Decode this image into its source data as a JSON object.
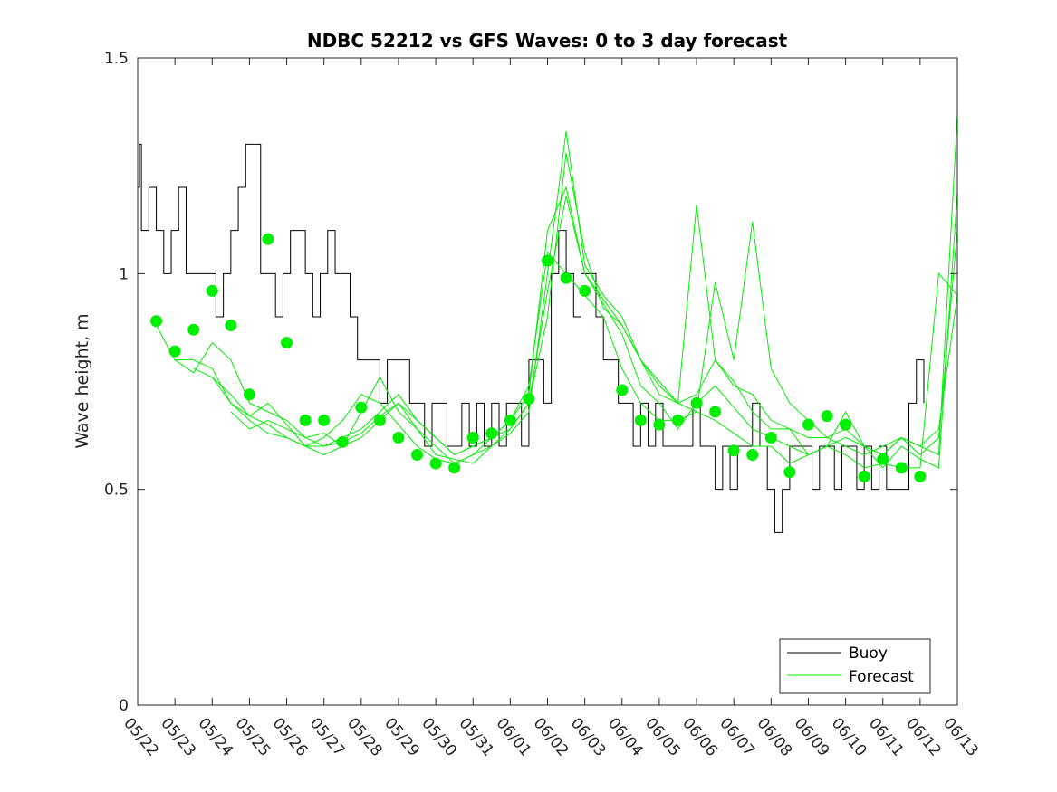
{
  "chart_data": {
    "type": "line",
    "title": "NDBC 52212 vs GFS Waves: 0 to 3 day forecast",
    "xlabel": "",
    "ylabel": "Wave height, m",
    "x_unit": "date (month/day)",
    "xlim": [
      "05/22",
      "06/13"
    ],
    "ylim": [
      0,
      1.5
    ],
    "yticks": [
      0,
      0.5,
      1,
      1.5
    ],
    "ytick_labels": [
      "0",
      "0.5",
      "1",
      "1.5"
    ],
    "xtick_labels": [
      "05/22",
      "05/23",
      "05/24",
      "05/25",
      "05/26",
      "05/27",
      "05/28",
      "05/29",
      "05/30",
      "05/31",
      "06/01",
      "06/02",
      "06/03",
      "06/04",
      "06/05",
      "06/06",
      "06/07",
      "06/08",
      "06/09",
      "06/10",
      "06/11",
      "06/12",
      "06/13"
    ],
    "grid": false,
    "legend": {
      "placement": "bottom-right",
      "entries": [
        "Buoy",
        "Forecast"
      ]
    },
    "colors": {
      "buoy": "#000000",
      "forecast": "#00ee00",
      "axes": "#262626"
    },
    "series": [
      {
        "name": "Buoy",
        "style": "step",
        "x_days_from_05_22": [
          0,
          0.05,
          0.1,
          0.3,
          0.5,
          0.7,
          0.9,
          1.1,
          1.3,
          1.5,
          1.7,
          1.9,
          2.1,
          2.3,
          2.5,
          2.7,
          2.9,
          3.1,
          3.3,
          3.5,
          3.7,
          3.9,
          4.1,
          4.3,
          4.5,
          4.7,
          4.9,
          5.1,
          5.3,
          5.5,
          5.7,
          5.9,
          6.1,
          6.3,
          6.5,
          6.7,
          6.9,
          7.1,
          7.3,
          7.5,
          7.7,
          7.9,
          8.1,
          8.3,
          8.5,
          8.7,
          8.9,
          9.1,
          9.3,
          9.5,
          9.7,
          9.9,
          10.1,
          10.3,
          10.5,
          10.7,
          10.9,
          11.1,
          11.3,
          11.5,
          11.7,
          11.9,
          12.1,
          12.3,
          12.5,
          12.7,
          12.9,
          13.1,
          13.3,
          13.5,
          13.7,
          13.9,
          14.1,
          14.3,
          14.5,
          14.7,
          14.9,
          15.1,
          15.3,
          15.5,
          15.7,
          15.9,
          16.1,
          16.3,
          16.5,
          16.7,
          16.9,
          17.1,
          17.3,
          17.5,
          17.7,
          17.9,
          18.1,
          18.3,
          18.5,
          18.7,
          18.9,
          19.1,
          19.3,
          19.5,
          19.7,
          19.9,
          20.1,
          20.3,
          20.5,
          20.7,
          20.9,
          21.1
        ],
        "values": [
          1.2,
          1.3,
          1.1,
          1.2,
          1.1,
          1.0,
          1.1,
          1.2,
          1.0,
          1.0,
          1.0,
          1.0,
          0.9,
          1.0,
          1.1,
          1.2,
          1.3,
          1.3,
          1.0,
          1.0,
          0.9,
          1.0,
          1.1,
          1.1,
          1.0,
          0.9,
          1.0,
          1.1,
          1.0,
          1.0,
          0.9,
          0.8,
          0.8,
          0.8,
          0.7,
          0.8,
          0.8,
          0.8,
          0.7,
          0.7,
          0.6,
          0.7,
          0.7,
          0.6,
          0.6,
          0.7,
          0.6,
          0.7,
          0.6,
          0.7,
          0.6,
          0.7,
          0.7,
          0.6,
          0.8,
          0.8,
          0.7,
          1.0,
          1.1,
          1.0,
          0.9,
          1.0,
          1.0,
          0.9,
          0.8,
          0.8,
          0.7,
          0.7,
          0.6,
          0.7,
          0.6,
          0.7,
          0.6,
          0.6,
          0.6,
          0.6,
          0.7,
          0.6,
          0.6,
          0.5,
          0.6,
          0.5,
          0.6,
          0.6,
          0.7,
          0.6,
          0.5,
          0.4,
          0.5,
          0.6,
          0.6,
          0.6,
          0.5,
          0.6,
          0.6,
          0.5,
          0.6,
          0.6,
          0.5,
          0.6,
          0.5,
          0.6,
          0.5,
          0.5,
          0.5,
          0.7,
          0.8,
          0.7
        ]
      },
      {
        "name": "Forecast",
        "style": "markers",
        "x_days_from_05_22": [
          0.5,
          1,
          1.5,
          2,
          2.5,
          3,
          3.5,
          4,
          4.5,
          5,
          5.5,
          6,
          6.5,
          7,
          7.5,
          8,
          8.5,
          9,
          9.5,
          10,
          10.5,
          11,
          11.5,
          12,
          13,
          13.5,
          14,
          14.5,
          15,
          15.5,
          16,
          16.5,
          17,
          17.5,
          18,
          18.5,
          19,
          19.5,
          20,
          20.5,
          21
        ],
        "values": [
          0.89,
          0.82,
          0.87,
          0.96,
          0.88,
          0.72,
          1.08,
          0.84,
          0.66,
          0.66,
          0.61,
          0.69,
          0.66,
          0.62,
          0.58,
          0.56,
          0.55,
          0.62,
          0.63,
          0.66,
          0.71,
          1.03,
          0.99,
          0.96,
          0.73,
          0.66,
          0.65,
          0.66,
          0.7,
          0.68,
          0.59,
          0.58,
          0.62,
          0.54,
          0.65,
          0.67,
          0.65,
          0.53,
          0.57,
          0.55,
          0.53
        ]
      },
      {
        "name": "",
        "style": "line",
        "x_days_from_05_22": [
          0.5,
          1,
          1.5,
          2,
          2.5,
          3,
          3.5,
          4,
          4.5,
          5,
          5.5,
          6,
          6.5,
          7,
          7.5,
          8,
          8.5,
          9,
          9.5,
          10,
          10.5,
          11,
          11.5,
          12,
          12.5,
          13,
          13.5,
          14,
          14.5,
          15,
          15.5,
          16,
          16.5,
          17,
          17.5,
          18,
          18.5,
          19,
          19.5,
          20,
          20.5,
          21,
          21.5,
          22
        ],
        "values": [
          0.88,
          0.8,
          0.8,
          0.78,
          0.7,
          0.67,
          0.7,
          0.65,
          0.6,
          0.62,
          0.66,
          0.72,
          0.7,
          0.65,
          0.6,
          0.57,
          0.56,
          0.58,
          0.62,
          0.66,
          0.74,
          1.05,
          1.0,
          0.95,
          0.9,
          0.78,
          0.7,
          0.66,
          0.66,
          0.68,
          0.66,
          0.63,
          0.6,
          0.6,
          0.56,
          0.58,
          0.6,
          0.58,
          0.55,
          0.56,
          0.55,
          0.55,
          1.0,
          0.95
        ]
      },
      {
        "name": "",
        "style": "line",
        "x_days_from_05_22": [
          1,
          1.5,
          2,
          2.5,
          3,
          3.5,
          4,
          4.5,
          5,
          5.5,
          6,
          6.5,
          7,
          7.5,
          8,
          8.5,
          9,
          9.5,
          10,
          10.5,
          11,
          11.5,
          12,
          12.5,
          13,
          13.5,
          14,
          14.5,
          15,
          15.5,
          16,
          16.5,
          17,
          17.5,
          18,
          18.5,
          19,
          19.5,
          20,
          20.5,
          21,
          21.5,
          22
        ],
        "values": [
          0.8,
          0.77,
          0.84,
          0.8,
          0.7,
          0.68,
          0.66,
          0.62,
          0.63,
          0.6,
          0.68,
          0.76,
          0.68,
          0.64,
          0.58,
          0.57,
          0.56,
          0.6,
          0.64,
          0.7,
          0.9,
          1.28,
          1.05,
          0.92,
          0.88,
          0.8,
          0.72,
          0.7,
          1.16,
          0.8,
          0.75,
          0.68,
          0.64,
          0.64,
          0.58,
          0.6,
          0.68,
          0.6,
          0.55,
          0.6,
          0.57,
          0.55,
          1.19
        ]
      },
      {
        "name": "",
        "style": "line",
        "x_days_from_05_22": [
          1.5,
          2,
          2.5,
          3,
          3.5,
          4,
          4.5,
          5,
          5.5,
          6,
          6.5,
          7,
          7.5,
          8,
          8.5,
          9,
          9.5,
          10,
          10.5,
          11,
          11.5,
          12,
          12.5,
          13,
          13.5,
          14,
          14.5,
          15,
          15.5,
          16,
          16.5,
          17,
          17.5,
          18,
          18.5,
          19,
          19.5,
          20,
          20.5,
          21,
          21.5,
          22
        ],
        "values": [
          0.78,
          0.76,
          0.72,
          0.67,
          0.65,
          0.62,
          0.6,
          0.6,
          0.62,
          0.64,
          0.68,
          0.72,
          0.66,
          0.62,
          0.58,
          0.6,
          0.62,
          0.66,
          0.72,
          1.1,
          1.2,
          1.0,
          0.93,
          0.86,
          0.74,
          0.7,
          0.64,
          0.7,
          0.74,
          0.69,
          0.64,
          0.62,
          0.6,
          0.58,
          0.6,
          0.62,
          0.6,
          0.58,
          0.62,
          0.6,
          0.58,
          1.37
        ]
      },
      {
        "name": "",
        "style": "line",
        "x_days_from_05_22": [
          2,
          2.5,
          3,
          3.5,
          4,
          4.5,
          5,
          5.5,
          6,
          6.5,
          7,
          7.5,
          8,
          8.5,
          9,
          9.5,
          10,
          10.5,
          11,
          11.5,
          12,
          12.5,
          13,
          13.5,
          14,
          14.5,
          15,
          15.5,
          16,
          16.5,
          17,
          17.5,
          18,
          18.5,
          19,
          19.5,
          20,
          20.5,
          21,
          21.5,
          22
        ],
        "values": [
          0.76,
          0.7,
          0.66,
          0.63,
          0.62,
          0.6,
          0.58,
          0.6,
          0.62,
          0.66,
          0.7,
          0.64,
          0.6,
          0.56,
          0.58,
          0.6,
          0.63,
          0.68,
          1.0,
          1.33,
          1.02,
          0.95,
          0.9,
          0.8,
          0.74,
          0.7,
          0.68,
          0.98,
          0.8,
          1.12,
          0.78,
          0.7,
          0.66,
          0.62,
          0.64,
          0.6,
          0.58,
          0.62,
          0.58,
          0.62,
          1.1
        ]
      },
      {
        "name": "",
        "style": "line",
        "x_days_from_05_22": [
          2.5,
          3,
          3.5,
          4,
          4.5,
          5,
          5.5,
          6,
          6.5,
          7,
          7.5,
          8,
          8.5,
          9,
          9.5,
          10,
          10.5,
          11,
          11.5,
          12,
          12.5,
          13,
          13.5,
          14,
          14.5,
          15,
          15.5,
          16,
          16.5,
          17,
          17.5,
          18,
          18.5,
          19,
          19.5,
          20,
          20.5,
          21,
          21.5,
          22
        ],
        "values": [
          0.68,
          0.64,
          0.66,
          0.64,
          0.62,
          0.6,
          0.61,
          0.63,
          0.67,
          0.7,
          0.66,
          0.62,
          0.58,
          0.6,
          0.62,
          0.64,
          0.7,
          0.96,
          1.18,
          1.0,
          0.94,
          0.88,
          0.8,
          0.75,
          0.7,
          0.72,
          0.8,
          0.74,
          0.72,
          0.66,
          0.64,
          0.62,
          0.62,
          0.6,
          0.58,
          0.6,
          0.62,
          0.6,
          0.64,
          0.95
        ]
      }
    ]
  }
}
